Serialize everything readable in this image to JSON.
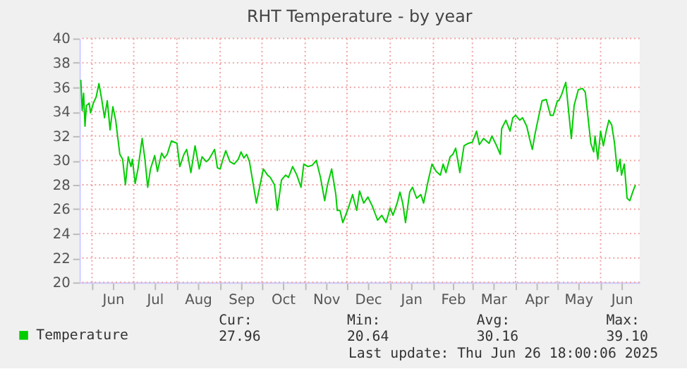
{
  "chart_data": {
    "type": "line",
    "title": "RHT Temperature - by year",
    "x": [
      "2024-05-24",
      "2024-05-25",
      "2024-05-26",
      "2024-05-27",
      "2024-05-28",
      "2024-05-30",
      "2024-05-31",
      "2024-06-02",
      "2024-06-04",
      "2024-06-06",
      "2024-06-08",
      "2024-06-10",
      "2024-06-12",
      "2024-06-14",
      "2024-06-16",
      "2024-06-18",
      "2024-06-21",
      "2024-06-23",
      "2024-06-25",
      "2024-06-27",
      "2024-06-29",
      "2024-06-30",
      "2024-07-02",
      "2024-07-04",
      "2024-07-07",
      "2024-07-09",
      "2024-07-11",
      "2024-07-13",
      "2024-07-16",
      "2024-07-18",
      "2024-07-21",
      "2024-07-23",
      "2024-07-25",
      "2024-07-28",
      "2024-07-30",
      "2024-08-01",
      "2024-08-03",
      "2024-08-06",
      "2024-08-08",
      "2024-08-11",
      "2024-08-14",
      "2024-08-17",
      "2024-08-19",
      "2024-08-22",
      "2024-08-24",
      "2024-08-28",
      "2024-08-30",
      "2024-09-01",
      "2024-09-03",
      "2024-09-05",
      "2024-09-08",
      "2024-09-11",
      "2024-09-14",
      "2024-09-16",
      "2024-09-18",
      "2024-09-20",
      "2024-09-22",
      "2024-09-27",
      "2024-09-30",
      "2024-10-02",
      "2024-10-05",
      "2024-10-07",
      "2024-10-10",
      "2024-10-12",
      "2024-10-15",
      "2024-10-18",
      "2024-10-20",
      "2024-10-23",
      "2024-10-26",
      "2024-10-29",
      "2024-10-31",
      "2024-11-03",
      "2024-11-06",
      "2024-11-09",
      "2024-11-12",
      "2024-11-15",
      "2024-11-17",
      "2024-11-20",
      "2024-11-23",
      "2024-11-24",
      "2024-11-26",
      "2024-11-28",
      "2024-12-02",
      "2024-12-05",
      "2024-12-08",
      "2024-12-10",
      "2024-12-13",
      "2024-12-16",
      "2024-12-19",
      "2024-12-21",
      "2024-12-23",
      "2024-12-26",
      "2024-12-29",
      "2025-01-01",
      "2025-01-03",
      "2025-01-06",
      "2025-01-08",
      "2025-01-10",
      "2025-01-12",
      "2025-01-15",
      "2025-01-17",
      "2025-01-20",
      "2025-01-23",
      "2025-01-25",
      "2025-01-28",
      "2025-01-31",
      "2025-02-03",
      "2025-02-06",
      "2025-02-08",
      "2025-02-10",
      "2025-02-13",
      "2025-02-15",
      "2025-02-17",
      "2025-02-20",
      "2025-02-23",
      "2025-02-26",
      "2025-03-01",
      "2025-03-04",
      "2025-03-06",
      "2025-03-09",
      "2025-03-13",
      "2025-03-15",
      "2025-03-18",
      "2025-03-21",
      "2025-03-22",
      "2025-03-25",
      "2025-03-28",
      "2025-03-30",
      "2025-04-01",
      "2025-04-04",
      "2025-04-06",
      "2025-04-09",
      "2025-04-11",
      "2025-04-13",
      "2025-04-15",
      "2025-04-17",
      "2025-04-20",
      "2025-04-23",
      "2025-04-26",
      "2025-04-28",
      "2025-05-01",
      "2025-05-02",
      "2025-05-04",
      "2025-05-07",
      "2025-05-09",
      "2025-05-11",
      "2025-05-13",
      "2025-05-16",
      "2025-05-19",
      "2025-05-21",
      "2025-05-25",
      "2025-05-27",
      "2025-05-28",
      "2025-05-30",
      "2025-06-01",
      "2025-06-03",
      "2025-06-05",
      "2025-06-07",
      "2025-06-09",
      "2025-06-11",
      "2025-06-13",
      "2025-06-15",
      "2025-06-16",
      "2025-06-18",
      "2025-06-20",
      "2025-06-22",
      "2025-06-24",
      "2025-06-26"
    ],
    "series": [
      {
        "name": "Temperature",
        "color": "#00cc00",
        "values": [
          36.6,
          34.1,
          35.5,
          32.8,
          34.5,
          34.7,
          33.9,
          34.7,
          35.2,
          36.3,
          35.0,
          33.5,
          34.9,
          32.5,
          34.4,
          33.3,
          30.5,
          30.1,
          28.0,
          30.3,
          29.5,
          30.1,
          28.1,
          29.3,
          31.8,
          30.1,
          27.8,
          29.3,
          30.4,
          29.1,
          30.6,
          30.2,
          30.5,
          31.6,
          31.5,
          31.4,
          29.5,
          30.5,
          30.9,
          29.0,
          31.2,
          29.3,
          30.3,
          29.9,
          30.1,
          30.9,
          29.4,
          29.3,
          30.1,
          30.8,
          29.9,
          29.7,
          30.1,
          30.7,
          30.2,
          30.5,
          29.9,
          26.5,
          28.2,
          29.3,
          28.8,
          28.6,
          28.0,
          25.9,
          28.4,
          28.8,
          28.6,
          29.5,
          28.8,
          27.8,
          29.7,
          29.5,
          29.6,
          30.0,
          28.6,
          26.7,
          28.0,
          29.3,
          27.2,
          25.9,
          25.9,
          24.9,
          26.1,
          27.2,
          25.9,
          27.5,
          26.5,
          27.0,
          26.3,
          25.7,
          25.1,
          25.5,
          24.9,
          26.1,
          25.5,
          26.5,
          27.4,
          26.5,
          24.9,
          27.4,
          27.8,
          26.9,
          27.2,
          26.5,
          28.2,
          29.7,
          29.1,
          28.8,
          29.7,
          29.0,
          30.3,
          30.5,
          31.0,
          29.0,
          31.2,
          31.4,
          31.5,
          32.4,
          31.3,
          31.8,
          31.4,
          32.0,
          31.3,
          30.5,
          32.6,
          33.3,
          32.4,
          33.5,
          33.7,
          33.3,
          33.5,
          32.8,
          31.8,
          30.9,
          32.2,
          33.3,
          34.9,
          35.0,
          33.7,
          33.7,
          34.9,
          34.9,
          35.4,
          36.4,
          34.1,
          31.8,
          34.5,
          35.8,
          35.9,
          35.6,
          31.4,
          30.7,
          32.0,
          30.1,
          32.4,
          31.2,
          32.4,
          33.3,
          32.9,
          31.4,
          29.1,
          30.1,
          28.8,
          29.7,
          26.9,
          26.7,
          27.4,
          28.0
        ]
      }
    ],
    "xlim": [
      "2024-05-23",
      "2025-06-29"
    ],
    "xticks": [
      {
        "value": "2024-06-01",
        "label": null
      },
      {
        "value": "2024-06-16",
        "label": "Jun"
      },
      {
        "value": "2024-07-01",
        "label": null
      },
      {
        "value": "2024-07-16",
        "label": "Jul"
      },
      {
        "value": "2024-08-01",
        "label": null
      },
      {
        "value": "2024-08-16",
        "label": "Aug"
      },
      {
        "value": "2024-09-01",
        "label": null
      },
      {
        "value": "2024-09-16",
        "label": "Sep"
      },
      {
        "value": "2024-10-01",
        "label": null
      },
      {
        "value": "2024-10-16",
        "label": "Oct"
      },
      {
        "value": "2024-11-01",
        "label": null
      },
      {
        "value": "2024-11-16",
        "label": "Nov"
      },
      {
        "value": "2024-12-01",
        "label": null
      },
      {
        "value": "2024-12-16",
        "label": "Dec"
      },
      {
        "value": "2025-01-01",
        "label": null
      },
      {
        "value": "2025-01-16",
        "label": "Jan"
      },
      {
        "value": "2025-02-01",
        "label": null
      },
      {
        "value": "2025-02-15",
        "label": "Feb"
      },
      {
        "value": "2025-03-01",
        "label": null
      },
      {
        "value": "2025-03-16",
        "label": "Mar"
      },
      {
        "value": "2025-04-01",
        "label": null
      },
      {
        "value": "2025-04-16",
        "label": "Apr"
      },
      {
        "value": "2025-05-01",
        "label": null
      },
      {
        "value": "2025-05-16",
        "label": "May"
      },
      {
        "value": "2025-06-01",
        "label": null
      },
      {
        "value": "2025-06-16",
        "label": "Jun"
      }
    ],
    "ylim": [
      20,
      40
    ],
    "yticks": [
      20,
      22,
      24,
      26,
      28,
      30,
      32,
      34,
      36,
      38,
      40
    ],
    "grid": true,
    "legend": "bottom",
    "marker": "none",
    "line_style": "solid",
    "annotations": [
      "Cur:",
      "27.96",
      "Min:",
      "20.64",
      "Avg:",
      "30.16",
      "Max:",
      "39.10",
      "Last update: Thu Jun 26 18:00:06 2025"
    ]
  }
}
